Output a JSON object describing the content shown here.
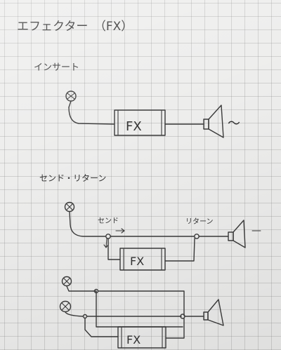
{
  "page": {
    "title": "エフェクター　（FX）"
  },
  "insert_section": {
    "heading": "インサート",
    "fx_label": "FX",
    "tail_mark": "～"
  },
  "send_return_section": {
    "heading": "センド・リターン",
    "send_label": "センド",
    "return_label": "リターン",
    "fx_label": "FX",
    "tail_mark": "—"
  },
  "parallel_section": {
    "fx_label": "FX"
  },
  "colors": {
    "paper": "#ededec",
    "grid": "#8a8a8a",
    "ink": "#3a3a3a"
  }
}
